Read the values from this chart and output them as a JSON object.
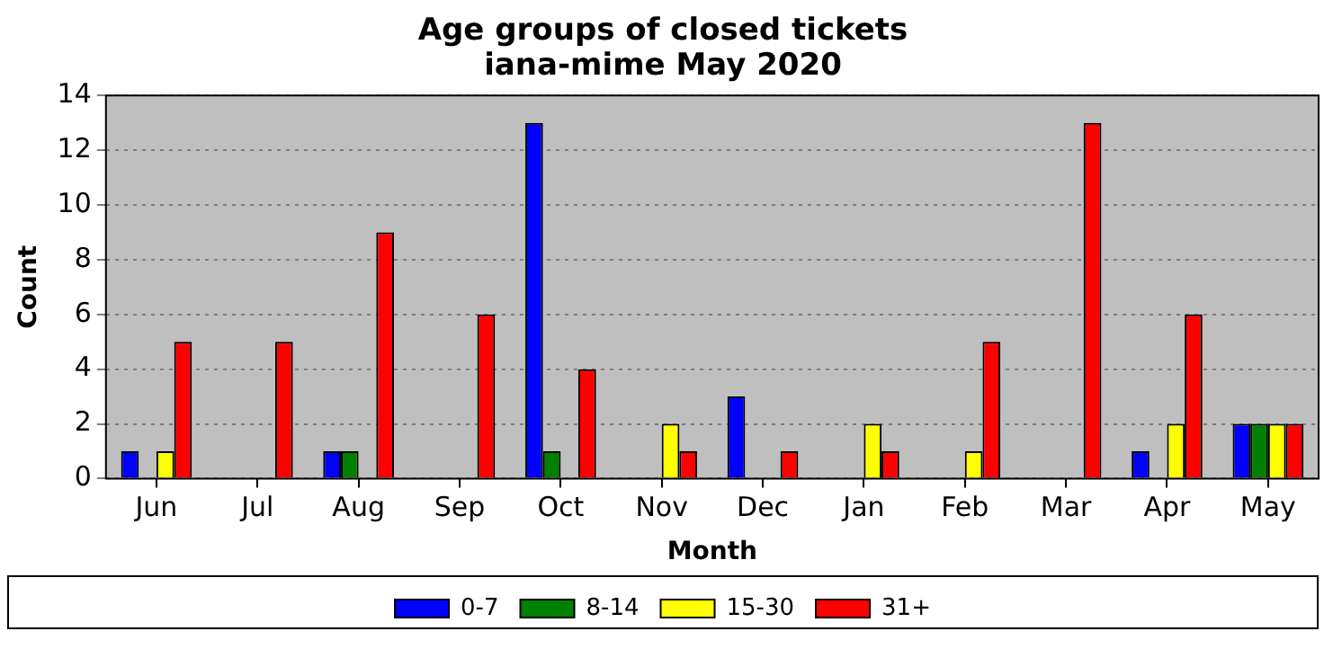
{
  "chart_data": {
    "type": "bar",
    "title": "Age groups of closed tickets",
    "subtitle": "iana-mime May 2020",
    "xlabel": "Month",
    "ylabel": "Count",
    "categories": [
      "Jun",
      "Jul",
      "Aug",
      "Sep",
      "Oct",
      "Nov",
      "Dec",
      "Jan",
      "Feb",
      "Mar",
      "Apr",
      "May"
    ],
    "series": [
      {
        "name": "0-7",
        "color": "#0000ff",
        "values": [
          1,
          0,
          1,
          0,
          13,
          0,
          3,
          0,
          0,
          0,
          1,
          2
        ]
      },
      {
        "name": "8-14",
        "color": "#008000",
        "values": [
          0,
          0,
          1,
          0,
          1,
          0,
          0,
          0,
          0,
          0,
          0,
          2
        ]
      },
      {
        "name": "15-30",
        "color": "#ffff00",
        "values": [
          1,
          0,
          0,
          0,
          0,
          2,
          0,
          2,
          1,
          0,
          2,
          2
        ]
      },
      {
        "name": "31+",
        "color": "#ff0000",
        "values": [
          5,
          5,
          9,
          6,
          4,
          1,
          1,
          1,
          5,
          13,
          6,
          2
        ]
      }
    ],
    "ylim": [
      0,
      14
    ],
    "yticks": [
      0,
      2,
      4,
      6,
      8,
      10,
      12,
      14
    ],
    "grid": "y",
    "legend": "bottom"
  }
}
